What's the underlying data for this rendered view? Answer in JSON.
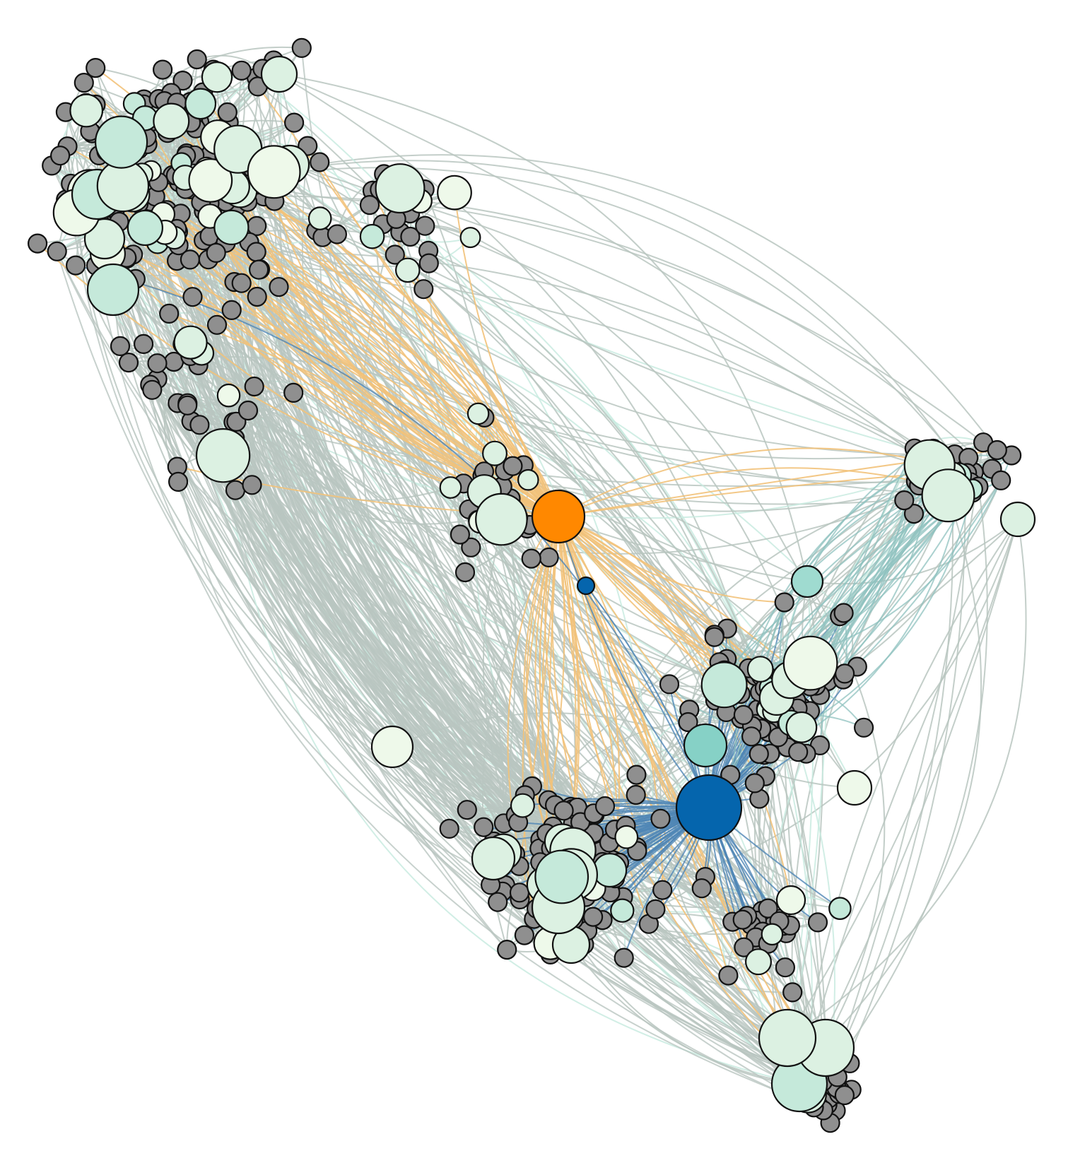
{
  "diagram": {
    "type": "network-graph",
    "labels": [],
    "colors": {
      "background": "#ffffff",
      "hub_orange": "#ff8800",
      "hub_blue": "#0565ad",
      "node_gray": "#8f8f8f",
      "node_mint_light": "#eef9ea",
      "node_mint": "#dcf1e2",
      "node_mint_mid": "#c5e9da",
      "node_teal": "#86d1c6",
      "edge_gray": "#b9c5c0",
      "edge_mint": "#c9ebe0",
      "edge_orange": "#f2c27a",
      "edge_blue": "#4f86b5",
      "edge_teal": "#8fc2bf",
      "node_stroke": "#111111"
    }
  }
}
